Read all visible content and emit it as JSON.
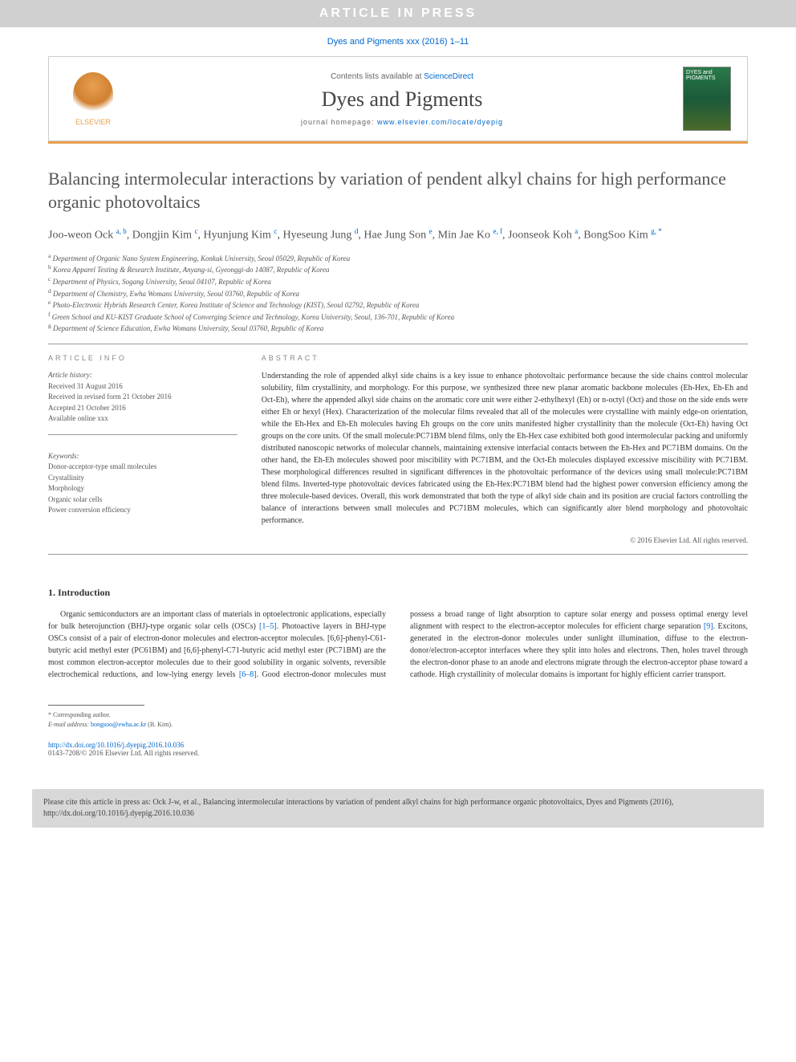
{
  "banner": "ARTICLE IN PRESS",
  "journal_ref": "Dyes and Pigments xxx (2016) 1–11",
  "header": {
    "contents_text": "Contents lists available at ",
    "contents_link": "ScienceDirect",
    "journal_name": "Dyes and Pigments",
    "homepage_label": "journal homepage: ",
    "homepage_url": "www.elsevier.com/locate/dyepig",
    "elsevier": "ELSEVIER",
    "cover_text": "DYES and PIGMENTS"
  },
  "title": "Balancing intermolecular interactions by variation of pendent alkyl chains for high performance organic photovoltaics",
  "authors_html": "Joo-weon Ock <sup>a, b</sup>, Dongjin Kim <sup>c</sup>, Hyunjung Kim <sup>c</sup>, Hyeseung Jung <sup>d</sup>, Hae Jung Son <sup>e</sup>, Min Jae Ko <sup>e, f</sup>, Joonseok Koh <sup>a</sup>, BongSoo Kim <sup>g, *</sup>",
  "affiliations": [
    {
      "sup": "a",
      "text": "Department of Organic Nano System Engineering, Konkuk University, Seoul 05029, Republic of Korea"
    },
    {
      "sup": "b",
      "text": "Korea Apparel Testing & Research Institute, Anyang-si, Gyeonggi-do 14087, Republic of Korea"
    },
    {
      "sup": "c",
      "text": "Department of Physics, Sogang University, Seoul 04107, Republic of Korea"
    },
    {
      "sup": "d",
      "text": "Department of Chemistry, Ewha Womans University, Seoul 03760, Republic of Korea"
    },
    {
      "sup": "e",
      "text": "Photo-Electronic Hybrids Research Center, Korea Institute of Science and Technology (KIST), Seoul 02792, Republic of Korea"
    },
    {
      "sup": "f",
      "text": "Green School and KU-KIST Graduate School of Converging Science and Technology, Korea University, Seoul, 136-701, Republic of Korea"
    },
    {
      "sup": "g",
      "text": "Department of Science Education, Ewha Womans University, Seoul 03760, Republic of Korea"
    }
  ],
  "info": {
    "label": "ARTICLE INFO",
    "history_label": "Article history:",
    "received": "Received 31 August 2016",
    "revised": "Received in revised form 21 October 2016",
    "accepted": "Accepted 21 October 2016",
    "online": "Available online xxx",
    "keywords_label": "Keywords:",
    "keywords": [
      "Donor-acceptor-type small molecules",
      "Crystallinity",
      "Morphology",
      "Organic solar cells",
      "Power conversion efficiency"
    ]
  },
  "abstract": {
    "label": "ABSTRACT",
    "text": "Understanding the role of appended alkyl side chains is a key issue to enhance photovoltaic performance because the side chains control molecular solubility, film crystallinity, and morphology. For this purpose, we synthesized three new planar aromatic backbone molecules (Eh-Hex, Eh-Eh and Oct-Eh), where the appended alkyl side chains on the aromatic core unit were either 2-ethylhexyl (Eh) or n-octyl (Oct) and those on the side ends were either Eh or hexyl (Hex). Characterization of the molecular films revealed that all of the molecules were crystalline with mainly edge-on orientation, while the Eh-Hex and Eh-Eh molecules having Eh groups on the core units manifested higher crystallinity than the molecule (Oct-Eh) having Oct groups on the core units. Of the small molecule:PC71BM blend films, only the Eh-Hex case exhibited both good intermolecular packing and uniformly distributed nanoscopic networks of molecular channels, maintaining extensive interfacial contacts between the Eh-Hex and PC71BM domains. On the other hand, the Eh-Eh molecules showed poor miscibility with PC71BM, and the Oct-Eh molecules displayed excessive miscibility with PC71BM. These morphological differences resulted in significant differences in the photovoltaic performance of the devices using small molecule:PC71BM blend films. Inverted-type photovoltaic devices fabricated using the Eh-Hex:PC71BM blend had the highest power conversion efficiency among the three molecule-based devices. Overall, this work demonstrated that both the type of alkyl side chain and its position are crucial factors controlling the balance of interactions between small molecules and PC71BM molecules, which can significantly alter blend morphology and photovoltaic performance.",
    "copyright": "© 2016 Elsevier Ltd. All rights reserved."
  },
  "intro": {
    "heading": "1. Introduction",
    "para1_a": "Organic semiconductors are an important class of materials in optoelectronic applications, especially for bulk heterojunction (BHJ)-type organic solar cells (OSCs) ",
    "ref1": "[1–5]",
    "para1_b": ". Photoactive layers in BHJ-type OSCs consist of a pair of electron-donor molecules and electron-acceptor molecules. [6,6]-phenyl-C61-butyric acid methyl ester (PC61BM) and [6,6]-phenyl-C71-butyric acid methyl ester (PC71BM) are the most common electron-acceptor molecules due to",
    "para2_a": "their good solubility in organic solvents, reversible electrochemical reductions, and low-lying energy levels ",
    "ref2": "[6–8]",
    "para2_b": ". Good electron-donor molecules must possess a broad range of light absorption to capture solar energy and possess optimal energy level alignment with respect to the electron-acceptor molecules for efficient charge separation ",
    "ref3": "[9]",
    "para2_c": ". Excitons, generated in the electron-donor molecules under sunlight illumination, diffuse to the electron-donor/electron-acceptor interfaces where they split into holes and electrons. Then, holes travel through the electron-donor phase to an anode and electrons migrate through the electron-acceptor phase toward a cathode. High crystallinity of molecular domains is important for highly efficient carrier transport."
  },
  "footnotes": {
    "corresponding": "* Corresponding author.",
    "email_label": "E-mail address: ",
    "email": "bongsoo@ewha.ac.kr",
    "email_name": " (B. Kim)."
  },
  "doi": {
    "url": "http://dx.doi.org/10.1016/j.dyepig.2016.10.036",
    "issn": "0143-7208/© 2016 Elsevier Ltd. All rights reserved."
  },
  "cite_box": "Please cite this article in press as: Ock J-w, et al., Balancing intermolecular interactions by variation of pendent alkyl chains for high performance organic photovoltaics, Dyes and Pigments (2016), http://dx.doi.org/10.1016/j.dyepig.2016.10.036"
}
